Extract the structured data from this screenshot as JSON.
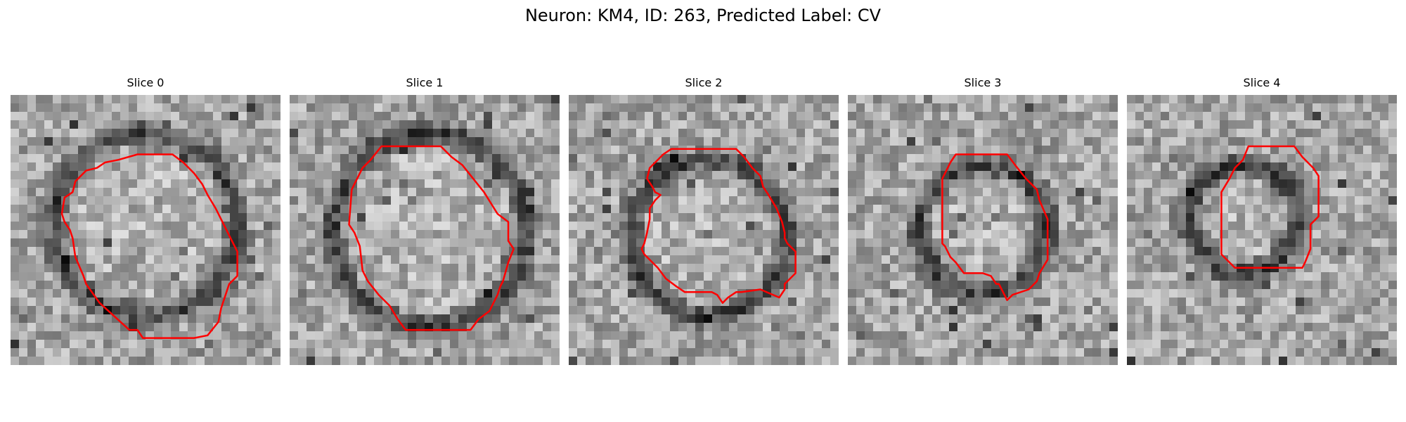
{
  "figure": {
    "title": "Neuron: KM4, ID: 263, Predicted Label: CV"
  },
  "panels": [
    {
      "title": "Slice 0",
      "ring_r": 0.34,
      "ring_cx": 0.5,
      "ring_cy": 0.48,
      "seed": 11
    },
    {
      "title": "Slice 1",
      "ring_r": 0.36,
      "ring_cx": 0.52,
      "ring_cy": 0.5,
      "seed": 23
    },
    {
      "title": "Slice 2",
      "ring_r": 0.29,
      "ring_cx": 0.52,
      "ring_cy": 0.53,
      "seed": 37
    },
    {
      "title": "Slice 3",
      "ring_r": 0.24,
      "ring_cx": 0.5,
      "ring_cy": 0.5,
      "seed": 41
    },
    {
      "title": "Slice 4",
      "ring_r": 0.2,
      "ring_cx": 0.43,
      "ring_cy": 0.46,
      "seed": 53
    }
  ],
  "colors": {
    "contour": "#ff0000"
  },
  "contours": [
    [
      [
        0.47,
        0.22
      ],
      [
        0.6,
        0.22
      ],
      [
        0.64,
        0.25
      ],
      [
        0.68,
        0.29
      ],
      [
        0.71,
        0.33
      ],
      [
        0.73,
        0.37
      ],
      [
        0.76,
        0.42
      ],
      [
        0.81,
        0.52
      ],
      [
        0.84,
        0.58
      ],
      [
        0.84,
        0.67
      ],
      [
        0.81,
        0.7
      ],
      [
        0.78,
        0.79
      ],
      [
        0.77,
        0.84
      ],
      [
        0.73,
        0.89
      ],
      [
        0.68,
        0.9
      ],
      [
        0.65,
        0.9
      ],
      [
        0.49,
        0.9
      ],
      [
        0.47,
        0.87
      ],
      [
        0.44,
        0.87
      ],
      [
        0.33,
        0.77
      ],
      [
        0.28,
        0.7
      ],
      [
        0.27,
        0.67
      ],
      [
        0.24,
        0.6
      ],
      [
        0.23,
        0.53
      ],
      [
        0.22,
        0.5
      ],
      [
        0.2,
        0.47
      ],
      [
        0.19,
        0.44
      ],
      [
        0.2,
        0.38
      ],
      [
        0.23,
        0.36
      ],
      [
        0.24,
        0.32
      ],
      [
        0.28,
        0.28
      ],
      [
        0.32,
        0.27
      ],
      [
        0.35,
        0.25
      ],
      [
        0.4,
        0.24
      ]
    ],
    [
      [
        0.34,
        0.19
      ],
      [
        0.56,
        0.19
      ],
      [
        0.6,
        0.23
      ],
      [
        0.64,
        0.26
      ],
      [
        0.68,
        0.31
      ],
      [
        0.72,
        0.36
      ],
      [
        0.77,
        0.44
      ],
      [
        0.81,
        0.47
      ],
      [
        0.81,
        0.54
      ],
      [
        0.83,
        0.57
      ],
      [
        0.81,
        0.62
      ],
      [
        0.79,
        0.69
      ],
      [
        0.78,
        0.71
      ],
      [
        0.77,
        0.74
      ],
      [
        0.75,
        0.78
      ],
      [
        0.74,
        0.8
      ],
      [
        0.7,
        0.83
      ],
      [
        0.67,
        0.87
      ],
      [
        0.63,
        0.87
      ],
      [
        0.43,
        0.87
      ],
      [
        0.4,
        0.83
      ],
      [
        0.37,
        0.78
      ],
      [
        0.33,
        0.74
      ],
      [
        0.29,
        0.69
      ],
      [
        0.27,
        0.65
      ],
      [
        0.26,
        0.56
      ],
      [
        0.24,
        0.51
      ],
      [
        0.22,
        0.48
      ],
      [
        0.23,
        0.35
      ],
      [
        0.27,
        0.27
      ],
      [
        0.3,
        0.24
      ]
    ],
    [
      [
        0.38,
        0.2
      ],
      [
        0.62,
        0.2
      ],
      [
        0.65,
        0.23
      ],
      [
        0.68,
        0.27
      ],
      [
        0.71,
        0.3
      ],
      [
        0.72,
        0.34
      ],
      [
        0.74,
        0.37
      ],
      [
        0.77,
        0.42
      ],
      [
        0.79,
        0.47
      ],
      [
        0.8,
        0.51
      ],
      [
        0.8,
        0.53
      ],
      [
        0.81,
        0.55
      ],
      [
        0.84,
        0.58
      ],
      [
        0.84,
        0.66
      ],
      [
        0.81,
        0.69
      ],
      [
        0.8,
        0.7
      ],
      [
        0.8,
        0.72
      ],
      [
        0.78,
        0.75
      ],
      [
        0.71,
        0.72
      ],
      [
        0.64,
        0.73
      ],
      [
        0.62,
        0.73
      ],
      [
        0.59,
        0.75
      ],
      [
        0.57,
        0.77
      ],
      [
        0.55,
        0.74
      ],
      [
        0.53,
        0.73
      ],
      [
        0.43,
        0.73
      ],
      [
        0.4,
        0.71
      ],
      [
        0.36,
        0.68
      ],
      [
        0.33,
        0.64
      ],
      [
        0.28,
        0.59
      ],
      [
        0.27,
        0.57
      ],
      [
        0.28,
        0.55
      ],
      [
        0.29,
        0.51
      ],
      [
        0.3,
        0.46
      ],
      [
        0.3,
        0.42
      ],
      [
        0.32,
        0.39
      ],
      [
        0.34,
        0.37
      ],
      [
        0.32,
        0.36
      ],
      [
        0.31,
        0.34
      ],
      [
        0.29,
        0.31
      ],
      [
        0.3,
        0.27
      ],
      [
        0.33,
        0.24
      ],
      [
        0.35,
        0.22
      ]
    ],
    [
      [
        0.4,
        0.22
      ],
      [
        0.59,
        0.22
      ],
      [
        0.62,
        0.26
      ],
      [
        0.66,
        0.31
      ],
      [
        0.7,
        0.35
      ],
      [
        0.71,
        0.39
      ],
      [
        0.74,
        0.46
      ],
      [
        0.74,
        0.61
      ],
      [
        0.71,
        0.66
      ],
      [
        0.7,
        0.69
      ],
      [
        0.67,
        0.72
      ],
      [
        0.61,
        0.74
      ],
      [
        0.59,
        0.76
      ],
      [
        0.56,
        0.7
      ],
      [
        0.55,
        0.7
      ],
      [
        0.53,
        0.67
      ],
      [
        0.5,
        0.66
      ],
      [
        0.43,
        0.66
      ],
      [
        0.4,
        0.62
      ],
      [
        0.38,
        0.6
      ],
      [
        0.36,
        0.56
      ],
      [
        0.35,
        0.55
      ],
      [
        0.35,
        0.31
      ],
      [
        0.37,
        0.27
      ],
      [
        0.38,
        0.25
      ]
    ],
    [
      [
        0.45,
        0.19
      ],
      [
        0.62,
        0.19
      ],
      [
        0.65,
        0.23
      ],
      [
        0.69,
        0.27
      ],
      [
        0.71,
        0.3
      ],
      [
        0.71,
        0.45
      ],
      [
        0.68,
        0.48
      ],
      [
        0.68,
        0.57
      ],
      [
        0.66,
        0.62
      ],
      [
        0.65,
        0.64
      ],
      [
        0.4,
        0.64
      ],
      [
        0.36,
        0.6
      ],
      [
        0.35,
        0.59
      ],
      [
        0.35,
        0.43
      ],
      [
        0.35,
        0.36
      ],
      [
        0.38,
        0.31
      ],
      [
        0.4,
        0.27
      ],
      [
        0.43,
        0.24
      ]
    ]
  ]
}
